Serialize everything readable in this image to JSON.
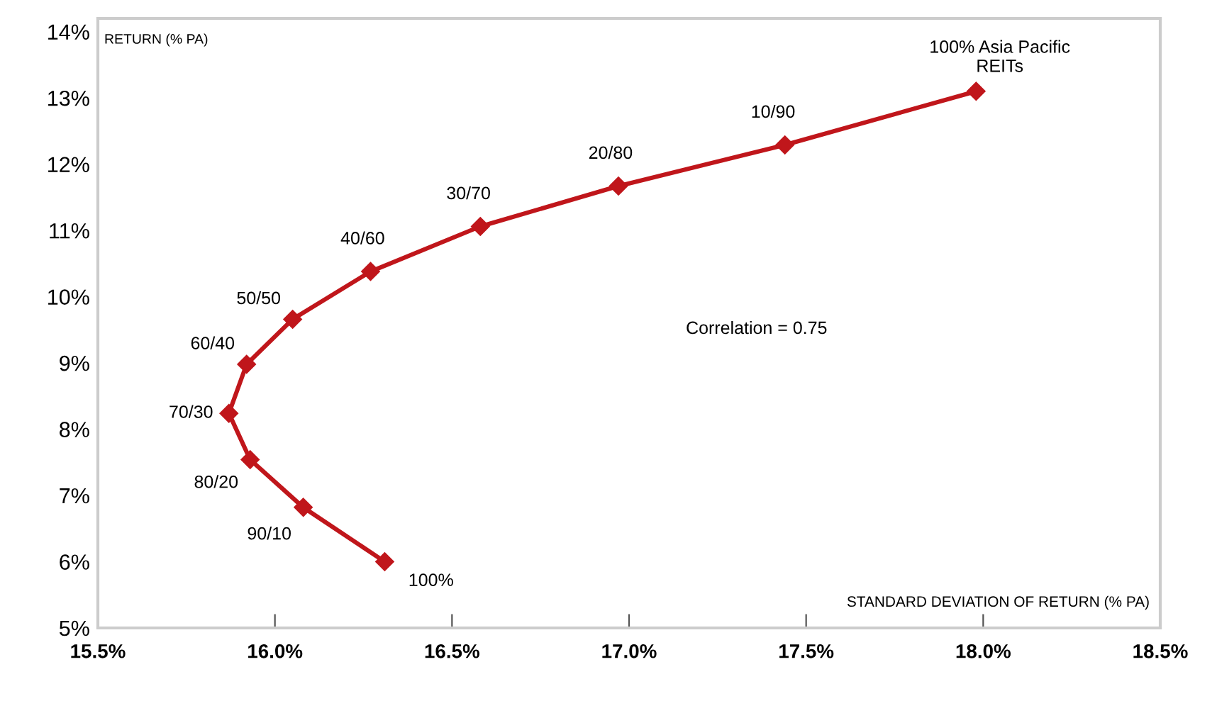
{
  "chart_data": {
    "type": "line",
    "xlabel": "STANDARD DEVIATION OF RETURN (% PA)",
    "ylabel": "RETURN (% PA)",
    "series": [
      {
        "color": "#c0161b",
        "x": [
          16.31,
          16.08,
          15.93,
          15.87,
          15.92,
          16.05,
          16.27,
          16.58,
          16.97,
          17.44,
          17.98
        ],
        "values": [
          6.0,
          6.82,
          7.54,
          8.24,
          8.98,
          9.66,
          10.38,
          11.06,
          11.67,
          12.29,
          13.1
        ]
      }
    ],
    "marker": "diamond",
    "line_style": "solid",
    "grid": false,
    "xlim": [
      15.5,
      18.5
    ],
    "ylim": [
      5,
      14.2
    ],
    "xticks": [
      {
        "value": 15.5,
        "label": "15.5%"
      },
      {
        "value": 16.0,
        "label": "16.0%"
      },
      {
        "value": 16.5,
        "label": "16.5%"
      },
      {
        "value": 17.0,
        "label": "17.0%"
      },
      {
        "value": 17.5,
        "label": "17.5%"
      },
      {
        "value": 18.0,
        "label": "18.0%"
      },
      {
        "value": 18.5,
        "label": "18.5%"
      }
    ],
    "yticks": [
      {
        "value": 5,
        "label": "5%"
      },
      {
        "value": 6,
        "label": "6%"
      },
      {
        "value": 7,
        "label": "7%"
      },
      {
        "value": 8,
        "label": "8%"
      },
      {
        "value": 9,
        "label": "9%"
      },
      {
        "value": 10,
        "label": "10%"
      },
      {
        "value": 11,
        "label": "11%"
      },
      {
        "value": 12,
        "label": "12%"
      },
      {
        "value": 13,
        "label": "13%"
      },
      {
        "value": 14,
        "label": "14%"
      }
    ],
    "annotations": [
      {
        "text": "100%",
        "x": 16.31,
        "y": 6.0
      },
      {
        "text": "90/10",
        "x": 16.08,
        "y": 6.82
      },
      {
        "text": "80/20",
        "x": 15.93,
        "y": 7.54
      },
      {
        "text": "70/30",
        "x": 15.87,
        "y": 8.24
      },
      {
        "text": "60/40",
        "x": 15.92,
        "y": 8.98
      },
      {
        "text": "50/50",
        "x": 16.05,
        "y": 9.66
      },
      {
        "text": "40/60",
        "x": 16.27,
        "y": 10.38
      },
      {
        "text": "30/70",
        "x": 16.58,
        "y": 11.06
      },
      {
        "text": "20/80",
        "x": 16.97,
        "y": 11.67
      },
      {
        "text": "10/90",
        "x": 17.44,
        "y": 12.29
      },
      {
        "text": "100% Asia Pacific\nREITs",
        "x": 17.98,
        "y": 13.1
      },
      "Correlation = 0.75"
    ]
  }
}
